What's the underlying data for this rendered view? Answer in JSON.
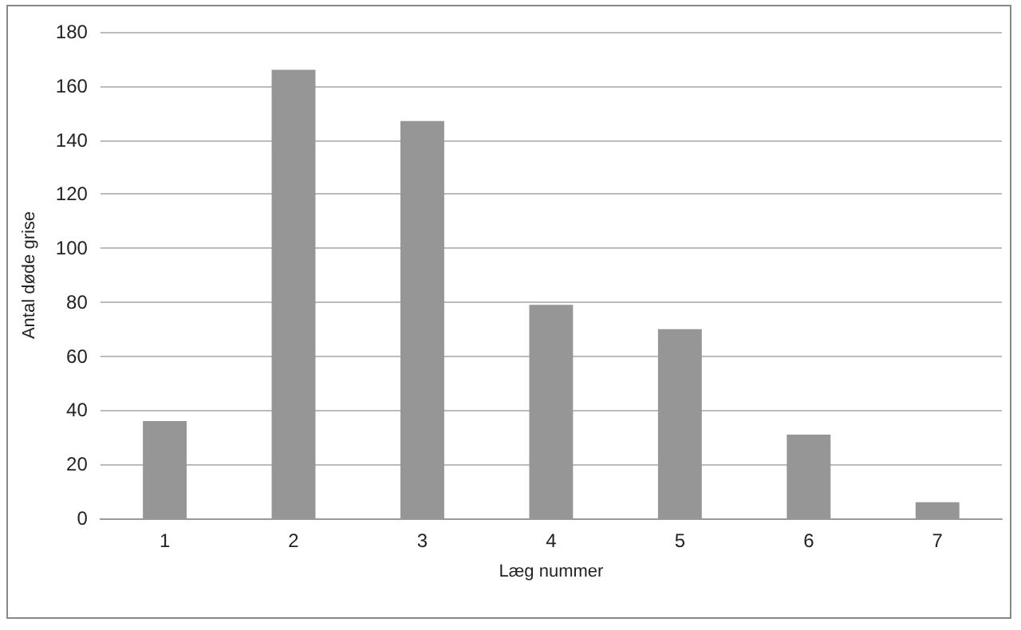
{
  "chart_data": {
    "type": "bar",
    "xlabel": "Læg nummer",
    "ylabel": "Antal døde grise",
    "categories": [
      "1",
      "2",
      "3",
      "4",
      "5",
      "6",
      "7"
    ],
    "values": [
      36,
      166,
      147,
      79,
      70,
      31,
      6
    ],
    "color": "#969696",
    "ylim": [
      0,
      180
    ],
    "yticks": [
      0,
      20,
      40,
      60,
      80,
      100,
      120,
      140,
      160,
      180
    ],
    "grid": "y"
  }
}
